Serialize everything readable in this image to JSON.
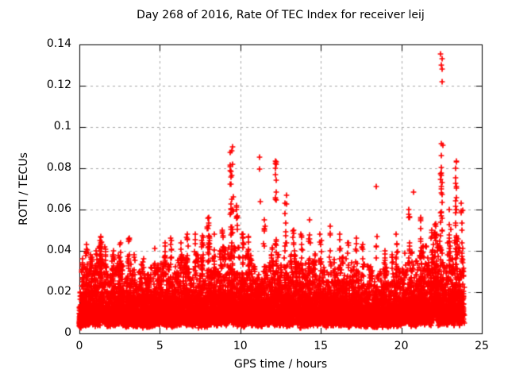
{
  "chart_data": {
    "type": "scatter",
    "title": "Day 268 of 2016, Rate Of TEC Index for receiver leij",
    "xlabel": "GPS time / hours",
    "ylabel": "ROTI / TECUs",
    "xlim": [
      0,
      25
    ],
    "ylim": [
      0,
      0.14
    ],
    "xticks": [
      0,
      5,
      10,
      15,
      20,
      25
    ],
    "xtick_labels": [
      "0",
      "5",
      "10",
      "15",
      "20",
      "25"
    ],
    "yticks": [
      0,
      0.02,
      0.04,
      0.06,
      0.08,
      0.1,
      0.12,
      0.14
    ],
    "ytick_labels": [
      "0",
      "0.02",
      "0.04",
      "0.06",
      "0.08",
      "0.1",
      "0.12",
      "0.14"
    ],
    "grid": true,
    "legend": "none",
    "marker": "plus",
    "marker_color": "#ff0000",
    "axis_color": "#000000",
    "grid_color": "#a8a8a8",
    "background": "#ffffff",
    "x_data_range": [
      0,
      23.9
    ],
    "seed": 2016268,
    "baseline_band": {
      "points_per_hour": 460,
      "median": 0.0105,
      "spread": 1.15,
      "upper_skew": 0.35,
      "y_min": 0.0028,
      "envelope_hours": [
        0,
        1,
        2,
        3,
        4,
        5,
        6,
        7,
        8,
        9,
        10,
        11,
        12,
        13,
        14,
        15,
        16,
        17,
        18,
        19,
        20,
        21,
        22,
        23,
        24
      ],
      "envelope_top": [
        0.03,
        0.032,
        0.033,
        0.032,
        0.028,
        0.03,
        0.033,
        0.034,
        0.034,
        0.038,
        0.035,
        0.034,
        0.034,
        0.032,
        0.032,
        0.034,
        0.033,
        0.032,
        0.03,
        0.03,
        0.034,
        0.034,
        0.038,
        0.042,
        0.042
      ]
    },
    "spikes": [
      [
        0.2,
        0.036,
        6
      ],
      [
        0.7,
        0.038,
        8
      ],
      [
        1.05,
        0.04,
        8
      ],
      [
        1.3,
        0.047,
        20
      ],
      [
        1.6,
        0.042,
        10
      ],
      [
        2.1,
        0.04,
        10
      ],
      [
        2.5,
        0.037,
        6
      ],
      [
        3.05,
        0.046,
        14
      ],
      [
        3.4,
        0.038,
        6
      ],
      [
        4.0,
        0.036,
        6
      ],
      [
        4.7,
        0.041,
        8
      ],
      [
        5.3,
        0.044,
        10
      ],
      [
        5.7,
        0.046,
        10
      ],
      [
        6.3,
        0.044,
        8
      ],
      [
        6.7,
        0.048,
        12
      ],
      [
        7.2,
        0.048,
        10
      ],
      [
        7.6,
        0.045,
        8
      ],
      [
        8.0,
        0.056,
        14
      ],
      [
        8.4,
        0.048,
        8
      ],
      [
        8.9,
        0.05,
        10
      ],
      [
        9.45,
        0.0885,
        42
      ],
      [
        9.8,
        0.062,
        12
      ],
      [
        10.5,
        0.047,
        10
      ],
      [
        11.5,
        0.055,
        8
      ],
      [
        12.2,
        0.0835,
        20
      ],
      [
        12.85,
        0.067,
        14
      ],
      [
        13.3,
        0.05,
        8
      ],
      [
        13.8,
        0.048,
        8
      ],
      [
        14.3,
        0.055,
        12
      ],
      [
        15.0,
        0.048,
        8
      ],
      [
        15.6,
        0.052,
        10
      ],
      [
        16.2,
        0.048,
        8
      ],
      [
        16.7,
        0.044,
        6
      ],
      [
        17.2,
        0.046,
        8
      ],
      [
        17.6,
        0.043,
        6
      ],
      [
        18.45,
        0.047,
        5
      ],
      [
        19.0,
        0.04,
        6
      ],
      [
        19.7,
        0.048,
        10
      ],
      [
        20.5,
        0.06,
        16
      ],
      [
        21.2,
        0.056,
        10
      ],
      [
        21.9,
        0.05,
        10
      ],
      [
        22.5,
        0.092,
        26
      ],
      [
        23.0,
        0.06,
        12
      ],
      [
        23.4,
        0.083,
        16
      ],
      [
        23.75,
        0.063,
        12
      ]
    ],
    "outliers": [
      [
        9.5,
        0.0905
      ],
      [
        11.17,
        0.0855
      ],
      [
        11.2,
        0.0795
      ],
      [
        11.22,
        0.064
      ],
      [
        18.42,
        0.071
      ],
      [
        20.78,
        0.0685
      ],
      [
        22.46,
        0.1355
      ],
      [
        22.52,
        0.133
      ],
      [
        22.49,
        0.13
      ],
      [
        22.55,
        0.128
      ],
      [
        22.51,
        0.122
      ],
      [
        23.42,
        0.0835
      ]
    ]
  }
}
